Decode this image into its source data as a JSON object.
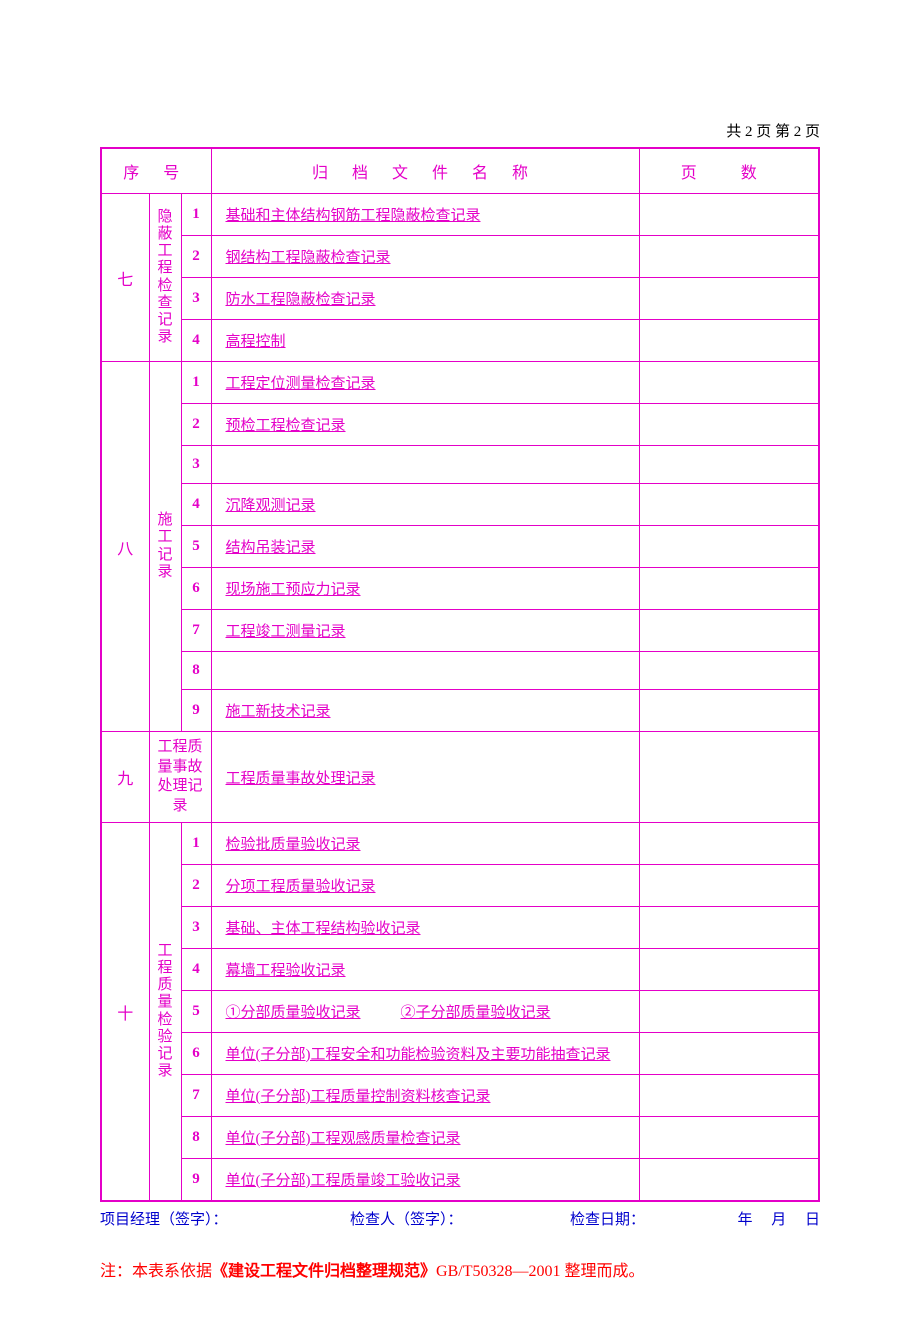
{
  "colors": {
    "magenta": "#e400c8",
    "blue": "#0000cc",
    "red": "#ff0000",
    "background": "#ffffff"
  },
  "page_header": "共 2 页  第 2 页",
  "headers": {
    "serial": "序  号",
    "title": "归  档  文  件  名  称",
    "pages": "页      数"
  },
  "sections": [
    {
      "serial": "七",
      "category": "隐蔽工程检查记录",
      "rows": [
        {
          "idx": "1",
          "title": "基础和主体结构钢筋工程隐蔽检查记录"
        },
        {
          "idx": "2",
          "title": "钢结构工程隐蔽检查记录"
        },
        {
          "idx": "3",
          "title": "防水工程隐蔽检查记录"
        },
        {
          "idx": "4",
          "title": "高程控制"
        }
      ]
    },
    {
      "serial": "八",
      "category": "施工记录",
      "rows": [
        {
          "idx": "1",
          "title": "工程定位测量检查记录"
        },
        {
          "idx": "2",
          "title": "预检工程检查记录"
        },
        {
          "idx": "3",
          "title": ""
        },
        {
          "idx": "4",
          "title": "沉降观测记录"
        },
        {
          "idx": "5",
          "title": "结构吊装记录"
        },
        {
          "idx": "6",
          "title": "现场施工预应力记录"
        },
        {
          "idx": "7",
          "title": "工程竣工测量记录"
        },
        {
          "idx": "8",
          "title": ""
        },
        {
          "idx": "9",
          "title": "施工新技术记录"
        }
      ]
    },
    {
      "serial": "九",
      "category": "工程质量事故处理记录",
      "single": true,
      "rows": [
        {
          "title": "工程质量事故处理记录"
        }
      ]
    },
    {
      "serial": "十",
      "category": "工程质量检验记录",
      "rows": [
        {
          "idx": "1",
          "title": "检验批质量验收记录"
        },
        {
          "idx": "2",
          "title": "分项工程质量验收记录"
        },
        {
          "idx": "3",
          "title": "基础、主体工程结构验收记录"
        },
        {
          "idx": "4",
          "title": "幕墙工程验收记录"
        },
        {
          "idx": "5",
          "title": "①分部质量验收记录",
          "title2": "②子分部质量验收记录"
        },
        {
          "idx": "6",
          "title": "单位(子分部)工程安全和功能检验资料及主要功能抽查记录"
        },
        {
          "idx": "7",
          "title": "单位(子分部)工程质量控制资料核查记录"
        },
        {
          "idx": "8",
          "title": "单位(子分部)工程观感质量检查记录"
        },
        {
          "idx": "9",
          "title": "单位(子分部)工程质量竣工验收记录"
        }
      ]
    }
  ],
  "footer": {
    "pm": "项目经理（签字）：",
    "inspector": "检查人（签字）：",
    "date_label": "检查日期：",
    "date_suffix": "年     月     日"
  },
  "note_prefix": "注：本表系依据",
  "note_bold": "《建设工程文件归档整理规范》",
  "note_suffix": "GB/T50328—2001 整理而成。"
}
